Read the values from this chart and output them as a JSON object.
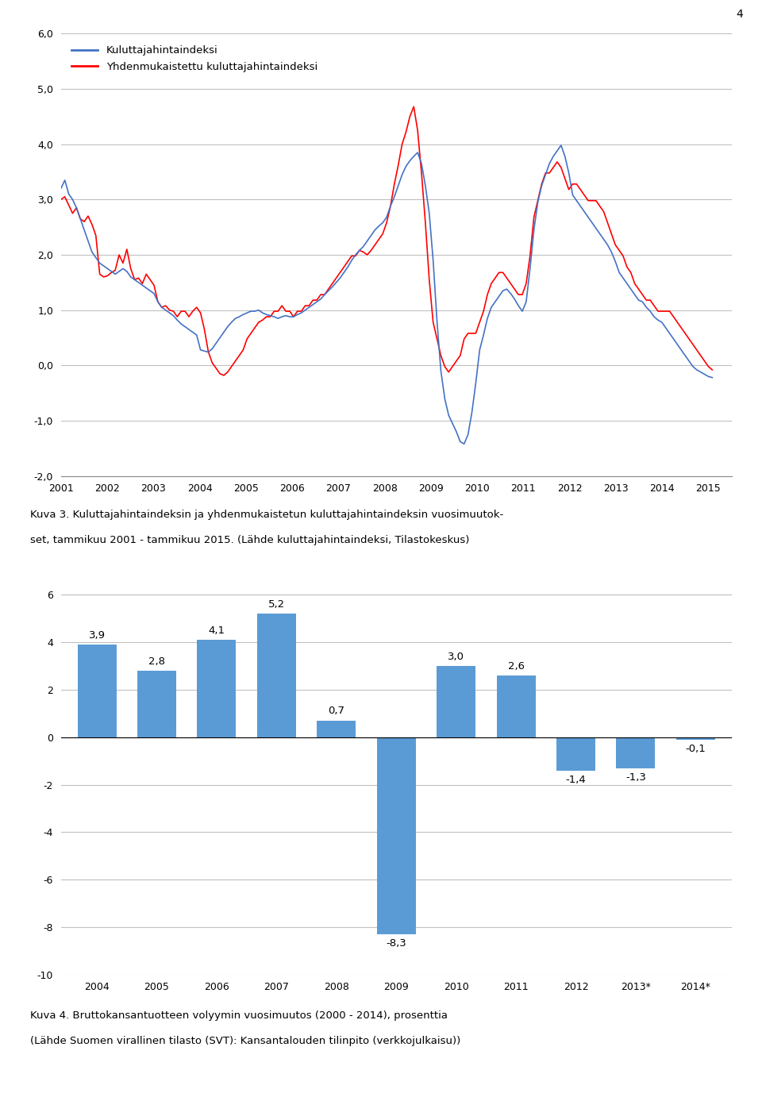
{
  "line_blue_label": "Kuluttajahintaindeksi",
  "line_red_label": "Yhdenmukaistettu kuluttajahintaindeksi",
  "line_ylim": [
    -2.0,
    6.0
  ],
  "line_yticks": [
    -2.0,
    -1.0,
    0.0,
    1.0,
    2.0,
    3.0,
    4.0,
    5.0,
    6.0
  ],
  "line_xticks": [
    2001,
    2002,
    2003,
    2004,
    2005,
    2006,
    2007,
    2008,
    2009,
    2010,
    2011,
    2012,
    2013,
    2014,
    2015
  ],
  "line_color_blue": "#4472C4",
  "line_color_red": "#FF0000",
  "bar_categories": [
    "2004",
    "2005",
    "2006",
    "2007",
    "2008",
    "2009",
    "2010",
    "2011",
    "2012",
    "2013*",
    "2014*"
  ],
  "bar_values": [
    3.9,
    2.8,
    4.1,
    5.2,
    0.7,
    -8.3,
    3.0,
    2.6,
    -1.4,
    -1.3,
    -0.1
  ],
  "bar_color": "#5B9BD5",
  "bar_ylim": [
    -10,
    7
  ],
  "bar_yticks": [
    -10,
    -8,
    -6,
    -4,
    -2,
    0,
    2,
    4,
    6
  ],
  "page_number": "4",
  "background_color": "#FFFFFF",
  "grid_color": "#C0C0C0",
  "caption1_line1": "Kuva 3. Kuluttajahintaindeksin ja yhdenmukaistetun kuluttajahintaindeksin vuosimuutok-",
  "caption1_line2": "set, tammikuu 2001 - tammikuu 2015. (Lähde kuluttajahintaindeksi, Tilastokeskus)",
  "caption2_line1": "Kuva 4. Bruttokansantuotteen volyymin vuosimuutos (2000 - 2014), prosenttia",
  "caption2_line2": "(Lähde Suomen virallinen tilasto (SVT): Kansantalouden tilinpito (verkkojulkaisu))"
}
